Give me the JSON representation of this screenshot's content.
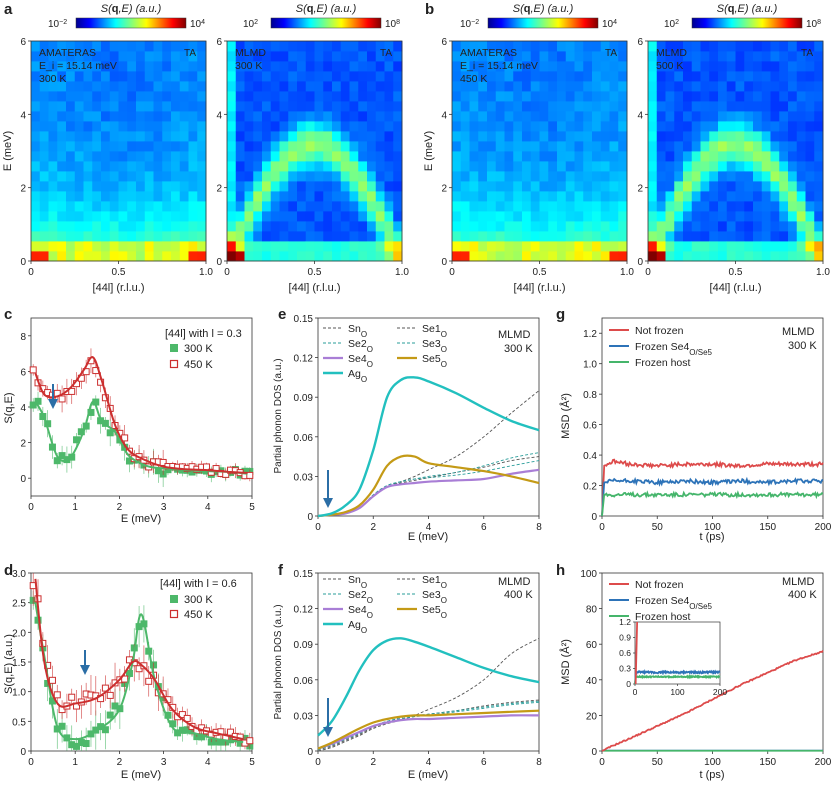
{
  "panel_letters": {
    "a": "a",
    "b": "b",
    "c": "c",
    "d": "d",
    "e": "e",
    "f": "f",
    "g": "g",
    "h": "h"
  },
  "maps": {
    "cbar_label_bold": "q",
    "cbar_label_pre": "S(",
    "cbar_label_post": ",E) (a.u.)",
    "cbar_exp": {
      "exp": {
        "lo": "10",
        "lo_exp": "−2",
        "hi": "10",
        "hi_exp": "4"
      },
      "sim": {
        "lo": "10",
        "lo_exp": "2",
        "hi": "10",
        "hi_exp": "8"
      }
    },
    "ylabel": "E (meV)",
    "xlabel": "[44l] (r.l.u.)",
    "yticks": [
      "0",
      "2",
      "4",
      "6"
    ],
    "xticks": [
      "0",
      "0.5",
      "1.0"
    ],
    "ta_label": "TA",
    "panels": [
      {
        "key": "a1",
        "line1": "AMATERAS",
        "line2": "E_i = 15.14 meV",
        "line3": "300 K"
      },
      {
        "key": "a2",
        "line1": "MLMD",
        "line2": "300 K",
        "line3": ""
      },
      {
        "key": "b1",
        "line1": "AMATERAS",
        "line2": "E_i = 15.14 meV",
        "line3": "450 K"
      },
      {
        "key": "b2",
        "line1": "MLMD",
        "line2": "500 K",
        "line3": ""
      }
    ]
  },
  "c_panel": {
    "legend_title": "[44l] with l = 0.3",
    "legend": [
      "300 K",
      "450 K"
    ],
    "xlabel": "E (meV)",
    "ylabel": "S(q,E)",
    "xticks": [
      "0",
      "1",
      "2",
      "3",
      "4",
      "5"
    ],
    "yticks": [
      "0",
      "2",
      "4",
      "6",
      "8"
    ]
  },
  "d_panel": {
    "legend_title": "[44l] with l = 0.6",
    "legend": [
      "300 K",
      "450 K"
    ],
    "xlabel": "E (meV)",
    "ylabel": "S(q,E) (a.u.)",
    "xticks": [
      "0",
      "1",
      "2",
      "3",
      "4",
      "5"
    ],
    "yticks": [
      "0",
      "0.5",
      "1.0",
      "1.5",
      "2.0",
      "2.5",
      "3.0"
    ]
  },
  "dos": {
    "ylabel": "Partial phonon DOS (a.u.)",
    "xlabel": "E (meV)",
    "xticks": [
      "0",
      "2",
      "4",
      "6",
      "8"
    ],
    "yticks": [
      "0",
      "0.03",
      "0.06",
      "0.09",
      "0.12",
      "0.15"
    ],
    "e_tag": [
      "MLMD",
      "300 K"
    ],
    "f_tag": [
      "MLMD",
      "400 K"
    ],
    "legend": [
      "Sn_O",
      "Se1_O",
      "Se2_O",
      "Se3_O",
      "Se4_O",
      "Se5_O",
      "Ag_O"
    ]
  },
  "msd": {
    "ylabel": "MSD (Å²)",
    "xlabel": "t (ps)",
    "xticks": [
      "0",
      "50",
      "100",
      "150",
      "200"
    ],
    "g_yticks": [
      "0",
      "0.2",
      "0.4",
      "0.6",
      "0.8",
      "1.0",
      "1.2"
    ],
    "h_yticks": [
      "0",
      "20",
      "40",
      "60",
      "80",
      "100"
    ],
    "inset_yticks": [
      "0",
      "0.3",
      "0.6",
      "0.9",
      "1.2"
    ],
    "inset_xticks": [
      "0",
      "100",
      "200"
    ],
    "g_tag": [
      "MLMD",
      "300 K"
    ],
    "h_tag": [
      "MLMD",
      "400 K"
    ],
    "legend": [
      "Not frozen",
      "Frozen Se4_O/Se5_O",
      "Frozen host"
    ]
  },
  "colors": {
    "green": "#4db86a",
    "red": "#cc2f2f",
    "teal": "#22c0bf",
    "gold": "#c49a16",
    "violet": "#a97ed6",
    "blue": "#2d73b8",
    "msd_red": "#dd4b4b",
    "msd_green": "#45b56b",
    "arrow": "#2b6ea6"
  },
  "chart_data": [
    {
      "type": "line",
      "title": "",
      "xlabel": "E (meV)",
      "ylabel": "S(q,E)",
      "xlim": [
        0,
        5
      ],
      "ylim": [
        -1,
        9
      ],
      "series": [
        {
          "name": "300 K",
          "x": [
            0.1,
            0.3,
            0.6,
            0.9,
            1.2,
            1.4,
            1.6,
            1.9,
            2.2,
            2.6,
            3.0,
            3.5,
            4.0,
            4.5,
            4.9
          ],
          "values": [
            4.3,
            3.4,
            1.2,
            1.2,
            2.7,
            4.3,
            3.2,
            2.6,
            1.3,
            0.7,
            0.55,
            0.45,
            0.4,
            0.35,
            0.25
          ]
        },
        {
          "name": "450 K",
          "x": [
            0.1,
            0.3,
            0.6,
            0.9,
            1.2,
            1.4,
            1.6,
            1.9,
            2.2,
            2.6,
            3.0,
            3.5,
            4.0,
            4.5,
            4.9
          ],
          "values": [
            5.9,
            4.7,
            4.6,
            5.1,
            6.1,
            6.8,
            5.5,
            3.0,
            1.6,
            1.0,
            0.65,
            0.5,
            0.45,
            0.35,
            0.3
          ]
        }
      ]
    },
    {
      "type": "line",
      "title": "",
      "xlabel": "E (meV)",
      "ylabel": "S(q,E) (a.u.)",
      "xlim": [
        0,
        5
      ],
      "ylim": [
        0,
        3
      ],
      "series": [
        {
          "name": "300 K",
          "x": [
            0.1,
            0.3,
            0.6,
            1.0,
            1.5,
            2.0,
            2.3,
            2.5,
            2.8,
            3.2,
            3.7,
            4.2,
            4.8
          ],
          "values": [
            2.5,
            1.6,
            0.4,
            0.2,
            0.35,
            0.7,
            1.5,
            2.3,
            1.2,
            0.4,
            0.3,
            0.2,
            0.15
          ]
        },
        {
          "name": "450 K",
          "x": [
            0.1,
            0.3,
            0.6,
            1.0,
            1.5,
            2.0,
            2.3,
            2.5,
            2.8,
            3.2,
            3.7,
            4.2,
            4.8
          ],
          "values": [
            2.9,
            1.5,
            0.8,
            0.8,
            0.9,
            1.2,
            1.5,
            1.45,
            1.2,
            0.7,
            0.4,
            0.3,
            0.2
          ]
        }
      ]
    },
    {
      "type": "line",
      "title": "",
      "xlabel": "E (meV)",
      "ylabel": "Partial phonon DOS (a.u.)",
      "xlim": [
        0,
        8
      ],
      "ylim": [
        0,
        0.15
      ],
      "series": [
        {
          "name": "Ag_O",
          "x": [
            0,
            0.5,
            1,
            1.5,
            2,
            2.5,
            3,
            3.5,
            4,
            5,
            6,
            7,
            8
          ],
          "values": [
            0,
            0.002,
            0.008,
            0.02,
            0.05,
            0.09,
            0.103,
            0.105,
            0.102,
            0.093,
            0.082,
            0.072,
            0.065
          ]
        },
        {
          "name": "Se5_O",
          "x": [
            0,
            0.5,
            1,
            1.5,
            2,
            2.5,
            3,
            3.5,
            4,
            5,
            6,
            7,
            8
          ],
          "values": [
            0,
            0.001,
            0.003,
            0.008,
            0.02,
            0.038,
            0.045,
            0.045,
            0.04,
            0.037,
            0.034,
            0.03,
            0.025
          ]
        },
        {
          "name": "Se4_O",
          "x": [
            0,
            0.5,
            1,
            1.5,
            2,
            2.5,
            3,
            3.5,
            4,
            5,
            6,
            7,
            8
          ],
          "values": [
            0,
            0.001,
            0.002,
            0.006,
            0.015,
            0.022,
            0.024,
            0.025,
            0.026,
            0.027,
            0.028,
            0.032,
            0.035
          ]
        },
        {
          "name": "Sn_O",
          "x": [
            0,
            0.5,
            1,
            1.5,
            2,
            2.5,
            3,
            3.5,
            4,
            5,
            6,
            7,
            8
          ],
          "values": [
            0,
            0.0005,
            0.002,
            0.006,
            0.015,
            0.022,
            0.026,
            0.03,
            0.035,
            0.045,
            0.06,
            0.078,
            0.095
          ]
        },
        {
          "name": "Se1_O",
          "x": [
            0,
            0.5,
            1,
            1.5,
            2,
            2.5,
            3,
            3.5,
            4,
            5,
            6,
            7,
            8
          ],
          "values": [
            0,
            0.0005,
            0.002,
            0.006,
            0.015,
            0.022,
            0.025,
            0.027,
            0.029,
            0.033,
            0.037,
            0.042,
            0.045
          ]
        },
        {
          "name": "Se2_O",
          "x": [
            0,
            0.5,
            1,
            1.5,
            2,
            2.5,
            3,
            3.5,
            4,
            5,
            6,
            7,
            8
          ],
          "values": [
            0,
            0.0005,
            0.002,
            0.006,
            0.016,
            0.023,
            0.026,
            0.028,
            0.029,
            0.031,
            0.034,
            0.038,
            0.042
          ]
        },
        {
          "name": "Se3_O",
          "x": [
            0,
            0.5,
            1,
            1.5,
            2,
            2.5,
            3,
            3.5,
            4,
            5,
            6,
            7,
            8
          ],
          "values": [
            0,
            0.0005,
            0.002,
            0.006,
            0.016,
            0.023,
            0.026,
            0.028,
            0.03,
            0.033,
            0.038,
            0.044,
            0.048
          ]
        }
      ]
    },
    {
      "type": "line",
      "title": "",
      "xlabel": "E (meV)",
      "ylabel": "Partial phonon DOS (a.u.)",
      "xlim": [
        0,
        8
      ],
      "ylim": [
        0,
        0.15
      ],
      "series": [
        {
          "name": "Ag_O",
          "x": [
            0,
            0.5,
            1,
            1.5,
            2,
            2.5,
            3,
            3.5,
            4,
            5,
            6,
            7,
            8
          ],
          "values": [
            0.013,
            0.025,
            0.045,
            0.068,
            0.085,
            0.093,
            0.095,
            0.092,
            0.088,
            0.079,
            0.07,
            0.063,
            0.058
          ]
        },
        {
          "name": "Se5_O",
          "x": [
            0,
            0.5,
            1,
            1.5,
            2,
            2.5,
            3,
            3.5,
            4,
            5,
            6,
            7,
            8
          ],
          "values": [
            0.002,
            0.007,
            0.013,
            0.019,
            0.024,
            0.027,
            0.029,
            0.03,
            0.03,
            0.031,
            0.032,
            0.033,
            0.034
          ]
        },
        {
          "name": "Se4_O",
          "x": [
            0,
            0.5,
            1,
            1.5,
            2,
            2.5,
            3,
            3.5,
            4,
            5,
            6,
            7,
            8
          ],
          "values": [
            0.002,
            0.006,
            0.011,
            0.016,
            0.021,
            0.024,
            0.026,
            0.027,
            0.027,
            0.028,
            0.029,
            0.03,
            0.03
          ]
        },
        {
          "name": "Sn_O",
          "x": [
            0,
            0.5,
            1,
            1.5,
            2,
            2.5,
            3,
            3.5,
            4,
            5,
            6,
            7,
            8
          ],
          "values": [
            0.0,
            0.003,
            0.008,
            0.013,
            0.019,
            0.023,
            0.026,
            0.03,
            0.035,
            0.045,
            0.06,
            0.082,
            0.095
          ]
        },
        {
          "name": "Se1_O",
          "x": [
            0,
            0.5,
            1,
            1.5,
            2,
            2.5,
            3,
            3.5,
            4,
            5,
            6,
            7,
            8
          ],
          "values": [
            0.001,
            0.004,
            0.009,
            0.014,
            0.02,
            0.024,
            0.027,
            0.029,
            0.031,
            0.034,
            0.038,
            0.041,
            0.043
          ]
        },
        {
          "name": "Se2_O",
          "x": [
            0,
            0.5,
            1,
            1.5,
            2,
            2.5,
            3,
            3.5,
            4,
            5,
            6,
            7,
            8
          ],
          "values": [
            0.001,
            0.005,
            0.01,
            0.015,
            0.021,
            0.025,
            0.027,
            0.029,
            0.03,
            0.033,
            0.036,
            0.039,
            0.041
          ]
        },
        {
          "name": "Se3_O",
          "x": [
            0,
            0.5,
            1,
            1.5,
            2,
            2.5,
            3,
            3.5,
            4,
            5,
            6,
            7,
            8
          ],
          "values": [
            0.001,
            0.005,
            0.01,
            0.015,
            0.021,
            0.025,
            0.028,
            0.03,
            0.031,
            0.034,
            0.037,
            0.04,
            0.042
          ]
        }
      ]
    },
    {
      "type": "line",
      "title": "",
      "xlabel": "t (ps)",
      "ylabel": "MSD (Å²)",
      "xlim": [
        0,
        200
      ],
      "ylim": [
        0,
        1.3
      ],
      "series": [
        {
          "name": "Not frozen",
          "x": [
            0,
            2,
            10,
            25,
            50,
            75,
            100,
            125,
            150,
            175,
            200
          ],
          "values": [
            0,
            0.33,
            0.36,
            0.34,
            0.33,
            0.34,
            0.34,
            0.33,
            0.34,
            0.34,
            0.34
          ]
        },
        {
          "name": "Frozen Se4_O/Se5_O",
          "x": [
            0,
            2,
            10,
            25,
            50,
            75,
            100,
            125,
            150,
            175,
            200
          ],
          "values": [
            0,
            0.22,
            0.23,
            0.23,
            0.22,
            0.23,
            0.22,
            0.23,
            0.22,
            0.23,
            0.23
          ]
        },
        {
          "name": "Frozen host",
          "x": [
            0,
            2,
            10,
            25,
            50,
            75,
            100,
            125,
            150,
            175,
            200
          ],
          "values": [
            0,
            0.14,
            0.14,
            0.14,
            0.14,
            0.14,
            0.14,
            0.14,
            0.14,
            0.14,
            0.14
          ]
        }
      ]
    },
    {
      "type": "line",
      "title": "",
      "xlabel": "t (ps)",
      "ylabel": "MSD (Å²)",
      "xlim": [
        0,
        200
      ],
      "ylim": [
        0,
        100
      ],
      "series": [
        {
          "name": "Not frozen",
          "x": [
            0,
            10,
            25,
            50,
            75,
            100,
            125,
            150,
            175,
            200
          ],
          "values": [
            0,
            3,
            7,
            14,
            21,
            29,
            37,
            44,
            51,
            56
          ]
        },
        {
          "name": "Frozen Se4_O/Se5_O",
          "x": [
            0,
            50,
            100,
            150,
            200
          ],
          "values": [
            0.23,
            0.23,
            0.23,
            0.23,
            0.23
          ]
        },
        {
          "name": "Frozen host",
          "x": [
            0,
            50,
            100,
            150,
            200
          ],
          "values": [
            0.14,
            0.14,
            0.14,
            0.14,
            0.14
          ]
        }
      ]
    }
  ]
}
